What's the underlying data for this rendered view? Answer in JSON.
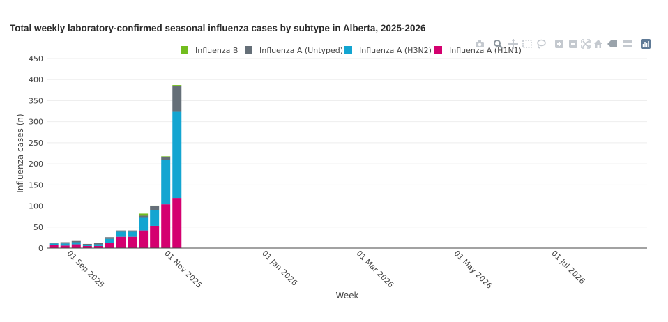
{
  "chart_data": {
    "type": "bar",
    "stacked": true,
    "title": "Total weekly laboratory-confirmed seasonal influenza cases by subtype in Alberta, 2025-2026",
    "xlabel": "Week",
    "ylabel": "Influenza cases (n)",
    "ylim": [
      0,
      450
    ],
    "yticks": [
      0,
      50,
      100,
      150,
      200,
      250,
      300,
      350,
      400,
      450
    ],
    "xrange": [
      "2025-08-20",
      "2026-08-30"
    ],
    "xticks": [
      {
        "date": "2025-09-01",
        "label": "01 Sep 2025"
      },
      {
        "date": "2025-11-01",
        "label": "01 Nov 2025"
      },
      {
        "date": "2026-01-01",
        "label": "01 Jan 2026"
      },
      {
        "date": "2026-03-01",
        "label": "01 Mar 2026"
      },
      {
        "date": "2026-05-01",
        "label": "01 May 2026"
      },
      {
        "date": "2026-07-01",
        "label": "01 Jul 2026"
      }
    ],
    "grid": true,
    "legend_position": "top",
    "weeks": [
      "2025-08-24",
      "2025-08-31",
      "2025-09-07",
      "2025-09-14",
      "2025-09-21",
      "2025-09-28",
      "2025-10-05",
      "2025-10-12",
      "2025-10-19",
      "2025-10-26",
      "2025-11-02",
      "2025-11-09"
    ],
    "series": [
      {
        "name": "Influenza A (H1N1)",
        "color": "#d4006f",
        "values": [
          8,
          6,
          9,
          5,
          5,
          12,
          27,
          27,
          42,
          53,
          104,
          119
        ]
      },
      {
        "name": "Influenza A (H3N2)",
        "color": "#13a5d1",
        "values": [
          3,
          5,
          5,
          3,
          4,
          10,
          12,
          12,
          30,
          38,
          105,
          206
        ]
      },
      {
        "name": "Influenza A (Untyped)",
        "color": "#656f78",
        "values": [
          2,
          3,
          3,
          2,
          3,
          4,
          3,
          3,
          5,
          9,
          8,
          60
        ]
      },
      {
        "name": "Influenza B",
        "color": "#72bd1e",
        "values": [
          0,
          0,
          0,
          0,
          0,
          0,
          0,
          0,
          5,
          1,
          1,
          2
        ]
      }
    ],
    "legend_order": [
      "Influenza B",
      "Influenza A (Untyped)",
      "Influenza A (H3N2)",
      "Influenza A (H1N1)"
    ]
  },
  "modebar": {
    "icons": [
      "camera-icon",
      "zoom-icon",
      "pan-icon",
      "box-select-icon",
      "lasso-icon",
      "zoom-in-icon",
      "zoom-out-icon",
      "autoscale-icon",
      "reset-axes-icon",
      "hover-closest-icon",
      "hover-compare-icon",
      "plotly-logo-icon"
    ]
  }
}
